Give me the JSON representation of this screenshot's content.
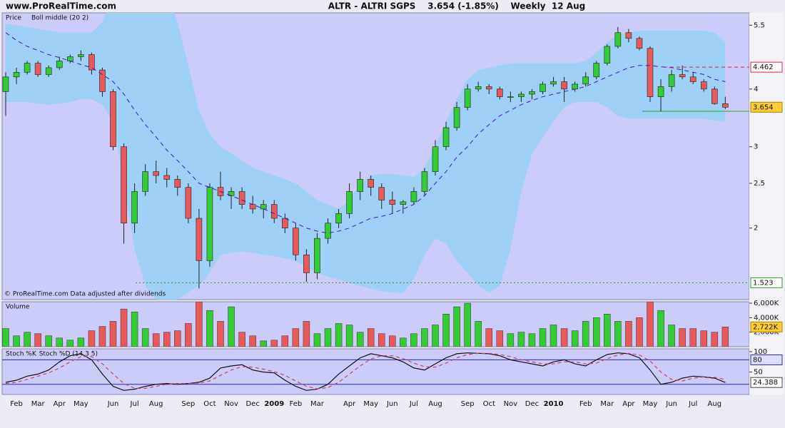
{
  "chart_data": [
    {
      "type": "candlestick",
      "site": "www.ProRealTime.com",
      "title": "ALTR - ALTRI SGPS    3.654 (-1.85%)    Weekly  12 Aug",
      "note": "© ProRealTime.com  Data adjusted after dividends",
      "name": "Price",
      "log": true,
      "up_color": "#33cc33",
      "down_color": "#e85a5a",
      "categories": [
        null,
        "Feb",
        null,
        "Mar",
        null,
        "Apr",
        null,
        "May",
        null,
        null,
        "Jun",
        null,
        "Jul",
        null,
        "Aug",
        null,
        null,
        "Sep",
        null,
        "Oct",
        null,
        "Nov",
        null,
        "Dec",
        null,
        "2009",
        null,
        "Feb",
        null,
        "Mar",
        null,
        null,
        "Apr",
        null,
        "May",
        null,
        "Jun",
        null,
        "Jul",
        null,
        "Aug",
        null,
        null,
        "Sep",
        null,
        "Oct",
        null,
        "Nov",
        null,
        "Dec",
        null,
        "2010",
        null,
        null,
        "Feb",
        null,
        "Mar",
        null,
        "Apr",
        null,
        "May",
        null,
        "Jun",
        null,
        "Jul",
        null,
        "Aug",
        null
      ],
      "open": [
        3.95,
        4.25,
        4.35,
        4.55,
        4.3,
        4.45,
        4.6,
        4.7,
        4.75,
        4.4,
        3.95,
        3.0,
        2.05,
        2.4,
        2.65,
        2.6,
        2.55,
        2.45,
        2.1,
        1.7,
        2.45,
        2.35,
        2.4,
        2.25,
        2.2,
        2.25,
        2.1,
        2.0,
        1.75,
        1.6,
        1.9,
        2.05,
        2.15,
        2.4,
        2.55,
        2.45,
        2.3,
        2.25,
        2.28,
        2.4,
        2.65,
        3.0,
        3.3,
        3.65,
        4.0,
        4.05,
        4.0,
        3.85,
        3.85,
        3.9,
        3.95,
        4.1,
        4.15,
        4.0,
        4.1,
        4.25,
        4.55,
        4.95,
        5.3,
        5.15,
        4.9,
        3.85,
        4.05,
        4.3,
        4.25,
        4.15,
        4.0,
        3.72
      ],
      "high": [
        4.35,
        4.45,
        4.6,
        4.6,
        4.5,
        4.7,
        4.75,
        4.85,
        4.8,
        4.45,
        4.0,
        3.05,
        2.5,
        2.75,
        2.8,
        2.7,
        2.6,
        2.5,
        2.2,
        2.5,
        2.65,
        2.45,
        2.45,
        2.35,
        2.3,
        2.3,
        2.15,
        2.05,
        1.8,
        1.95,
        2.1,
        2.2,
        2.5,
        2.65,
        2.6,
        2.5,
        2.4,
        2.3,
        2.45,
        2.7,
        3.1,
        3.4,
        3.75,
        4.1,
        4.15,
        4.1,
        4.05,
        3.95,
        3.95,
        4.0,
        4.15,
        4.25,
        4.25,
        4.15,
        4.35,
        4.6,
        5.0,
        5.45,
        5.4,
        5.2,
        4.95,
        4.2,
        4.4,
        4.5,
        4.35,
        4.2,
        4.05,
        3.85
      ],
      "low": [
        3.5,
        4.1,
        4.3,
        4.25,
        4.25,
        4.4,
        4.55,
        4.6,
        4.3,
        3.85,
        2.95,
        1.85,
        1.95,
        2.35,
        2.5,
        2.45,
        2.35,
        2.05,
        1.48,
        1.65,
        2.3,
        2.2,
        2.2,
        2.15,
        2.1,
        2.05,
        1.95,
        1.7,
        1.53,
        1.55,
        1.85,
        2.0,
        2.1,
        2.3,
        2.35,
        2.2,
        2.15,
        2.15,
        2.25,
        2.35,
        2.6,
        2.95,
        3.25,
        3.6,
        3.95,
        3.9,
        3.8,
        3.75,
        3.75,
        3.8,
        3.9,
        4.05,
        3.75,
        3.95,
        4.05,
        4.2,
        4.5,
        4.9,
        5.05,
        4.85,
        3.75,
        3.58,
        3.95,
        4.2,
        4.1,
        3.95,
        3.7,
        3.62
      ],
      "close": [
        4.25,
        4.35,
        4.55,
        4.3,
        4.45,
        4.6,
        4.7,
        4.75,
        4.4,
        3.95,
        3.0,
        2.05,
        2.4,
        2.65,
        2.6,
        2.55,
        2.45,
        2.1,
        1.7,
        2.45,
        2.35,
        2.4,
        2.25,
        2.2,
        2.25,
        2.1,
        2.0,
        1.75,
        1.6,
        1.9,
        2.05,
        2.15,
        2.4,
        2.55,
        2.45,
        2.3,
        2.25,
        2.28,
        2.4,
        2.65,
        3.0,
        3.3,
        3.65,
        4.0,
        4.05,
        4.0,
        3.85,
        3.85,
        3.9,
        3.95,
        4.1,
        4.15,
        4.0,
        4.1,
        4.25,
        4.55,
        4.95,
        5.3,
        5.15,
        4.9,
        3.85,
        4.05,
        4.3,
        4.25,
        4.15,
        4.0,
        3.72,
        3.654
      ],
      "band": {
        "color": "#9fd0f7",
        "upper": [
          5.55,
          5.5,
          5.45,
          5.4,
          5.35,
          5.3,
          5.3,
          5.3,
          5.3,
          5.6,
          6.4,
          7.0,
          7.0,
          7.0,
          6.8,
          6.4,
          5.6,
          4.5,
          3.6,
          3.2,
          3.0,
          2.9,
          2.8,
          2.7,
          2.65,
          2.6,
          2.55,
          2.5,
          2.4,
          2.3,
          2.25,
          2.2,
          2.3,
          2.5,
          2.6,
          2.62,
          2.62,
          2.6,
          2.58,
          2.7,
          3.0,
          3.4,
          3.8,
          4.2,
          4.4,
          4.45,
          4.5,
          4.55,
          4.55,
          4.55,
          4.55,
          4.55,
          4.55,
          4.55,
          4.6,
          4.8,
          5.05,
          5.25,
          5.3,
          5.35,
          5.35,
          5.35,
          5.35,
          5.35,
          5.35,
          5.35,
          5.3,
          5.05
        ],
        "lower": [
          3.75,
          3.75,
          3.75,
          3.72,
          3.7,
          3.72,
          3.75,
          3.8,
          3.8,
          3.7,
          3.4,
          2.5,
          1.8,
          1.5,
          1.4,
          1.4,
          1.4,
          1.45,
          1.5,
          1.6,
          1.75,
          1.77,
          1.78,
          1.77,
          1.75,
          1.74,
          1.72,
          1.7,
          1.65,
          1.6,
          1.57,
          1.55,
          1.52,
          1.5,
          1.48,
          1.46,
          1.45,
          1.45,
          1.55,
          1.75,
          1.9,
          1.85,
          1.7,
          1.6,
          1.5,
          1.45,
          1.5,
          1.8,
          2.4,
          2.9,
          3.15,
          3.4,
          3.65,
          3.75,
          3.75,
          3.75,
          3.65,
          3.5,
          3.45,
          3.45,
          3.45,
          3.45,
          3.45,
          3.45,
          3.45,
          3.45,
          3.42,
          3.4
        ]
      },
      "series": [
        {
          "name": "Boll middle (20 2)",
          "color": "#4b12d6",
          "values": [
            5.3,
            5.1,
            4.95,
            4.85,
            4.75,
            4.68,
            4.6,
            4.52,
            4.45,
            4.3,
            4.15,
            3.9,
            3.6,
            3.35,
            3.15,
            2.95,
            2.8,
            2.65,
            2.5,
            2.45,
            2.4,
            2.35,
            2.3,
            2.25,
            2.2,
            2.15,
            2.1,
            2.05,
            2.0,
            1.97,
            1.95,
            1.97,
            2.0,
            2.05,
            2.1,
            2.12,
            2.15,
            2.2,
            2.25,
            2.35,
            2.5,
            2.65,
            2.85,
            3.0,
            3.2,
            3.35,
            3.5,
            3.6,
            3.7,
            3.78,
            3.85,
            3.9,
            3.95,
            4.0,
            4.05,
            4.15,
            4.25,
            4.35,
            4.45,
            4.5,
            4.5,
            4.47,
            4.45,
            4.4,
            4.35,
            4.3,
            4.2,
            4.15
          ]
        }
      ],
      "levels": [
        {
          "value": 4.462,
          "color": "#e0204a",
          "style": "dashed",
          "boxed": true
        },
        {
          "value": 3.58,
          "color": "#22aa22",
          "style": "solid",
          "boxed": false
        },
        {
          "value": 1.523,
          "color": "#2a9a2a",
          "style": "dotted",
          "boxed": true
        }
      ],
      "ylim": [
        1.4,
        5.85
      ],
      "yticks": [
        2,
        2.5,
        3,
        4,
        5.5
      ]
    },
    {
      "type": "bar",
      "title": "Volume",
      "up_color": "#33cc33",
      "down_color": "#e85a5a",
      "values": [
        2500,
        1500,
        2000,
        1800,
        1500,
        1200,
        900,
        1200,
        2200,
        2800,
        3500,
        5200,
        4800,
        2500,
        1800,
        2000,
        2200,
        3200,
        6200,
        5000,
        3500,
        5500,
        2000,
        1500,
        800,
        900,
        1500,
        2500,
        3500,
        1800,
        2500,
        3200,
        3000,
        2000,
        2500,
        1800,
        1500,
        1200,
        1800,
        2500,
        3000,
        4500,
        5500,
        6000,
        3500,
        2500,
        2200,
        1800,
        2000,
        1800,
        2500,
        3000,
        2500,
        2200,
        3500,
        4000,
        4500,
        3500,
        3500,
        4000,
        6200,
        5000,
        3000,
        2500,
        2500,
        2200,
        2000,
        2722
      ],
      "value_labels": [
        null,
        null,
        null,
        null,
        null,
        null,
        null,
        null,
        null,
        null,
        null,
        null,
        null,
        null,
        null,
        null,
        null,
        null,
        null,
        null,
        null,
        null,
        null,
        null,
        null,
        null,
        null,
        null,
        null,
        null,
        null,
        null,
        null,
        null,
        null,
        null,
        null,
        null,
        null,
        null,
        null,
        null,
        null,
        null,
        null,
        null,
        null,
        null,
        null,
        null,
        null,
        null,
        null,
        null,
        null,
        null,
        null,
        null,
        null,
        null,
        null,
        null,
        null,
        null,
        null,
        null,
        null,
        "2,722K"
      ],
      "ylim": [
        0,
        6200
      ],
      "yticks": [
        {
          "value": 2000,
          "label": "2,000K"
        },
        {
          "value": 4000,
          "label": "4,000K"
        },
        {
          "value": 6000,
          "label": "6,000K"
        }
      ]
    },
    {
      "type": "line",
      "series": [
        {
          "name": "Stoch %K",
          "color": "#111111",
          "style": "solid",
          "values": [
            25,
            30,
            40,
            45,
            55,
            75,
            90,
            95,
            80,
            45,
            15,
            5,
            8,
            15,
            20,
            22,
            20,
            22,
            25,
            35,
            60,
            65,
            68,
            55,
            50,
            48,
            30,
            15,
            5,
            8,
            20,
            45,
            65,
            85,
            95,
            90,
            85,
            75,
            60,
            55,
            70,
            85,
            95,
            97,
            96,
            95,
            90,
            80,
            75,
            70,
            65,
            75,
            80,
            70,
            65,
            80,
            93,
            97,
            95,
            85,
            55,
            20,
            25,
            35,
            40,
            38,
            35,
            24.388
          ]
        },
        {
          "name": "Stoch %D (14 3 5)",
          "color": "#d04060",
          "style": "dashed",
          "values": [
            22,
            25,
            32,
            40,
            48,
            60,
            75,
            88,
            88,
            70,
            45,
            22,
            10,
            10,
            15,
            20,
            22,
            22,
            23,
            28,
            42,
            55,
            63,
            62,
            57,
            51,
            42,
            28,
            15,
            9,
            12,
            25,
            45,
            65,
            82,
            90,
            90,
            83,
            72,
            63,
            62,
            72,
            85,
            93,
            96,
            96,
            93,
            88,
            80,
            75,
            70,
            70,
            75,
            75,
            70,
            72,
            83,
            92,
            96,
            92,
            77,
            50,
            32,
            28,
            35,
            38,
            37,
            32
          ]
        }
      ],
      "levels": [
        {
          "value": 80,
          "color": "#2a2aa8",
          "boxed": true
        },
        {
          "value": 20,
          "color": "#2a2aa8",
          "boxed": false
        }
      ],
      "ylim": [
        -5,
        107
      ],
      "yticks": [
        50,
        100
      ]
    }
  ]
}
